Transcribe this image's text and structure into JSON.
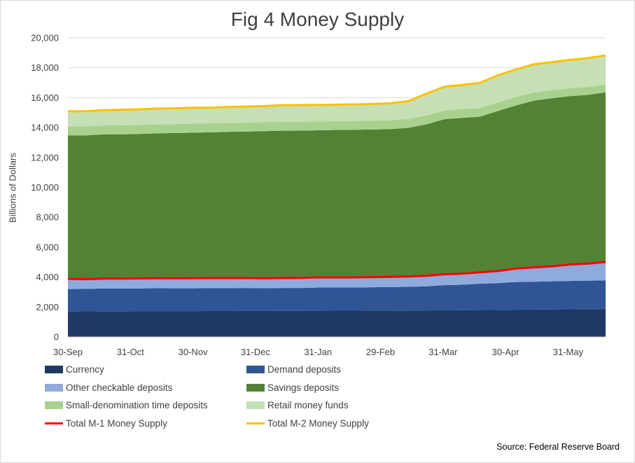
{
  "chart_data": {
    "type": "area",
    "title": "Fig 4 Money Supply",
    "ylabel": "Billions of Dollars",
    "ylim": [
      0,
      20000
    ],
    "yticks": [
      "0",
      "2,000",
      "4,000",
      "6,000",
      "8,000",
      "10,000",
      "12,000",
      "14,000",
      "16,000",
      "18,000",
      "20,000"
    ],
    "xticks": [
      "30-Sep",
      "31-Oct",
      "30-Nov",
      "31-Dec",
      "31-Jan",
      "29-Feb",
      "31-Mar",
      "30-Apr",
      "31-May"
    ],
    "legend_position": "bottom",
    "stacked_series": [
      {
        "name": "Currency",
        "color": "#203864",
        "values": [
          1700,
          1710,
          1720,
          1720,
          1725,
          1725,
          1730,
          1730,
          1735,
          1735,
          1740,
          1740,
          1745,
          1745,
          1750,
          1755,
          1755,
          1760,
          1765,
          1770,
          1775,
          1780,
          1790,
          1800,
          1810,
          1820,
          1830,
          1840,
          1850,
          1860,
          1870
        ]
      },
      {
        "name": "Demand deposits",
        "color": "#2F5597",
        "values": [
          1500,
          1500,
          1520,
          1520,
          1520,
          1530,
          1520,
          1520,
          1530,
          1530,
          1530,
          1520,
          1530,
          1530,
          1550,
          1550,
          1550,
          1560,
          1570,
          1580,
          1610,
          1680,
          1700,
          1760,
          1790,
          1850,
          1860,
          1880,
          1890,
          1900,
          1910
        ]
      },
      {
        "name": "Other checkable deposits",
        "color": "#8FAADC",
        "values": [
          680,
          650,
          660,
          660,
          665,
          665,
          665,
          680,
          670,
          670,
          665,
          660,
          665,
          670,
          680,
          675,
          675,
          680,
          680,
          690,
          700,
          730,
          740,
          760,
          810,
          900,
          960,
          1000,
          1100,
          1140,
          1230
        ]
      },
      {
        "name": "Savings deposits",
        "color": "#548235",
        "values": [
          9600,
          9620,
          9640,
          9650,
          9660,
          9700,
          9720,
          9730,
          9750,
          9780,
          9800,
          9840,
          9850,
          9850,
          9840,
          9860,
          9870,
          9870,
          9880,
          9940,
          10130,
          10370,
          10420,
          10410,
          10700,
          10910,
          11150,
          11240,
          11260,
          11280,
          11350
        ]
      },
      {
        "name": "Small-denomination time deposits",
        "color": "#A9D18E",
        "values": [
          600,
          600,
          600,
          600,
          600,
          600,
          600,
          600,
          600,
          600,
          600,
          600,
          600,
          590,
          590,
          590,
          590,
          590,
          590,
          590,
          590,
          580,
          580,
          580,
          570,
          560,
          550,
          540,
          530,
          530,
          520
        ]
      },
      {
        "name": "Retail money funds",
        "color": "#C5E0B4",
        "values": [
          1010,
          1015,
          1020,
          1040,
          1050,
          1050,
          1065,
          1080,
          1055,
          1065,
          1070,
          1080,
          1110,
          1120,
          1100,
          1105,
          1110,
          1120,
          1130,
          1200,
          1460,
          1590,
          1620,
          1680,
          1820,
          1850,
          1880,
          1880,
          1890,
          1930,
          1940
        ]
      }
    ],
    "line_series": [
      {
        "name": "Total M-1 Money Supply",
        "color": "#FF0000",
        "values": [
          3880,
          3860,
          3900,
          3900,
          3910,
          3920,
          3915,
          3930,
          3935,
          3935,
          3935,
          3920,
          3940,
          3945,
          3980,
          3980,
          3980,
          4000,
          4015,
          4040,
          4085,
          4190,
          4230,
          4320,
          4410,
          4570,
          4650,
          4720,
          4840,
          4900,
          5010
        ]
      },
      {
        "name": "Total M-2 Money Supply",
        "color": "#FFC000",
        "values": [
          15090,
          15095,
          15160,
          15190,
          15220,
          15270,
          15285,
          15330,
          15335,
          15380,
          15405,
          15440,
          15500,
          15505,
          15510,
          15535,
          15550,
          15580,
          15625,
          15770,
          16265,
          16730,
          16850,
          16990,
          17500,
          17890,
          18230,
          18380,
          18520,
          18640,
          18820
        ]
      }
    ]
  },
  "source": "Source: Federal Reserve Board"
}
